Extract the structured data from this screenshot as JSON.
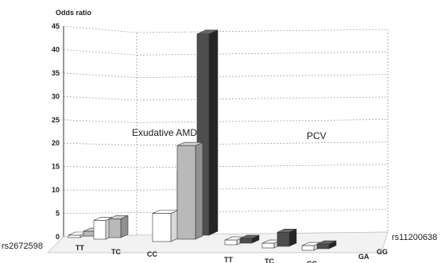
{
  "chart_data": {
    "type": "bar",
    "ylabel": "Odds ratio",
    "ylim": [
      0,
      45
    ],
    "y_ticks": [
      0,
      5,
      10,
      15,
      20,
      25,
      30,
      35,
      40,
      45
    ],
    "grid": true,
    "three_d": true,
    "x_axis_name": "rs2672598",
    "z_axis_name": "rs11200638",
    "panel_labels": [
      "Exudative AMD",
      "PCV"
    ],
    "groups": [
      {
        "label": "TT",
        "values": [
          0.5,
          1
        ]
      },
      {
        "label": "TC",
        "values": [
          4,
          4
        ]
      },
      {
        "label": "CC",
        "values": [
          6,
          20
        ]
      },
      {
        "label": "TT",
        "values": [
          1,
          1
        ]
      },
      {
        "label": "TC",
        "values": [
          1,
          3
        ]
      },
      {
        "label": "CC",
        "values": [
          1,
          1
        ]
      }
    ],
    "z_labels": [
      "GA",
      "GG"
    ],
    "hidden_back_bars": [
      {
        "front_group": 2,
        "values": [
          14,
          43
        ]
      }
    ],
    "colors": {
      "front_light": "#ffffff",
      "front_dark": "#b9b9b9",
      "back_mid": "#8a8a8a",
      "back_dark": "#4e4e4e",
      "grid": "#9a9a9a"
    }
  }
}
